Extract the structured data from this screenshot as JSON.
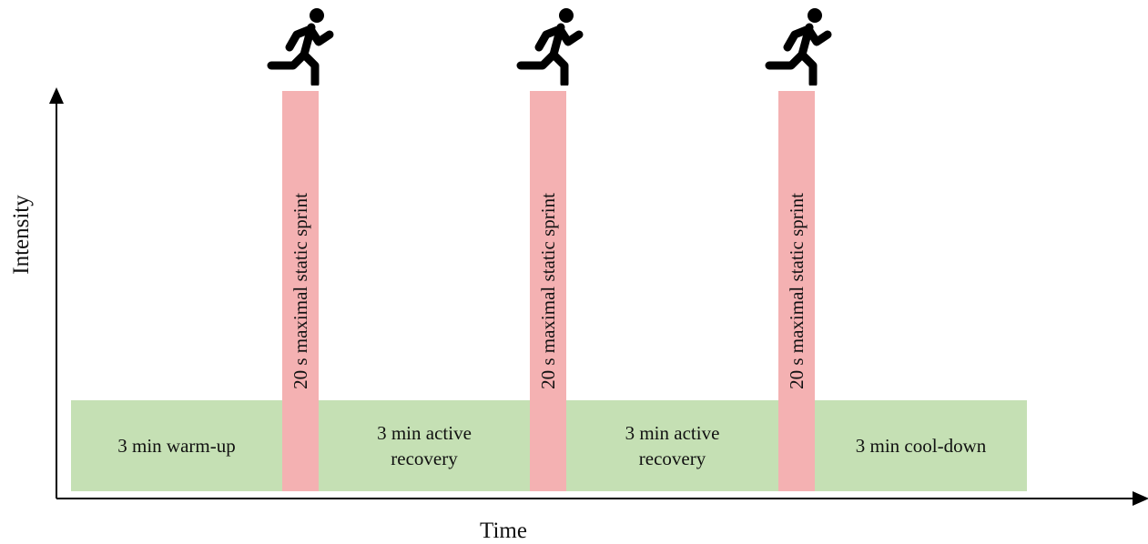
{
  "axes": {
    "y_label": "Intensity",
    "x_label": "Time"
  },
  "phases": [
    {
      "type": "low",
      "label": "3 min warm-up"
    },
    {
      "type": "sprint",
      "label": "20 s maximal static sprint"
    },
    {
      "type": "low",
      "label": "3 min active recovery"
    },
    {
      "type": "sprint",
      "label": "20 s maximal static sprint"
    },
    {
      "type": "low",
      "label": "3 min active recovery"
    },
    {
      "type": "sprint",
      "label": "20 s maximal static sprint"
    },
    {
      "type": "low",
      "label": "3 min cool-down"
    }
  ],
  "icons": [
    "running-person-icon",
    "running-person-icon",
    "running-person-icon"
  ],
  "colors": {
    "low_intensity": "#c5e0b4",
    "sprint": "#f4b1b2",
    "axis": "#000000",
    "icon": "#000000"
  }
}
